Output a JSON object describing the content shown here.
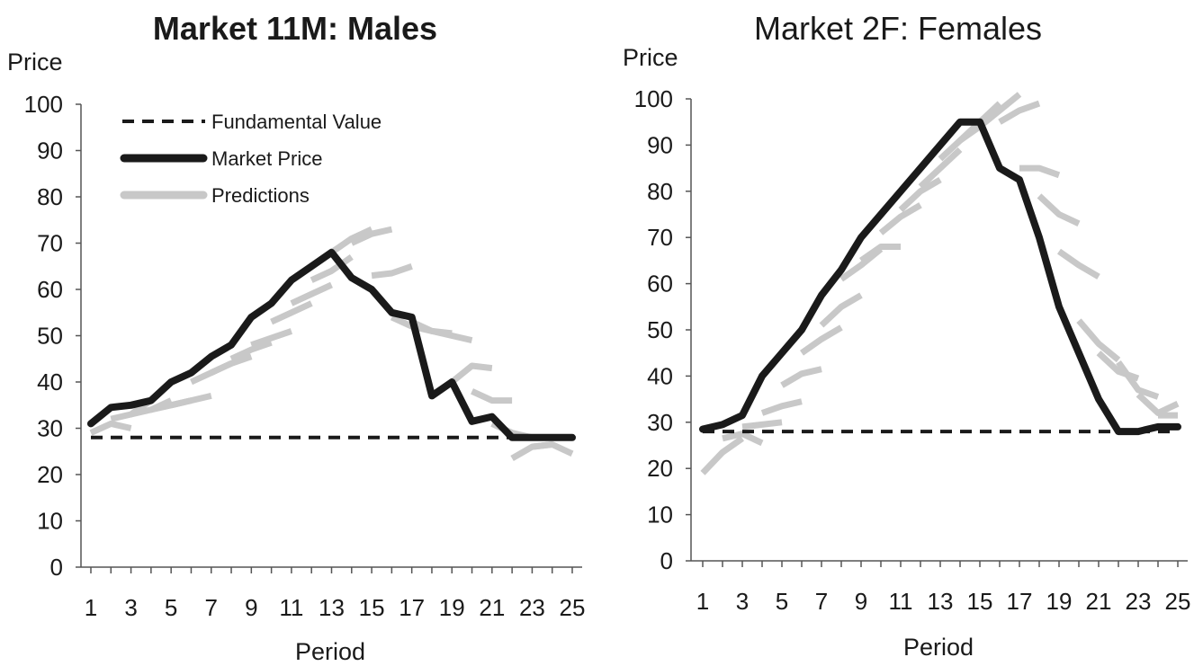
{
  "chart_data": [
    {
      "type": "line",
      "title": "Market 11M: Males",
      "xlabel": "Period",
      "ylabel": "Price",
      "ylim": [
        0,
        100
      ],
      "yticks": [
        0,
        10,
        20,
        30,
        40,
        50,
        60,
        70,
        80,
        90,
        100
      ],
      "xlim": [
        1,
        25
      ],
      "xticks": [
        1,
        3,
        5,
        7,
        9,
        11,
        13,
        15,
        17,
        19,
        21,
        23,
        25
      ],
      "legend_position": "top-left",
      "legend": [
        "Fundamental Value",
        "Market Price",
        "Predictions"
      ],
      "series": [
        {
          "name": "Fundamental Value",
          "style": "dashed",
          "color": "#1a1a1a",
          "x": [
            1,
            25
          ],
          "y": [
            28,
            28
          ]
        },
        {
          "name": "Market Price",
          "style": "solid",
          "color": "#1a1a1a",
          "x": [
            1,
            2,
            3,
            4,
            5,
            6,
            7,
            8,
            9,
            10,
            11,
            12,
            13,
            14,
            15,
            16,
            17,
            18,
            19,
            20,
            21,
            22,
            23,
            24,
            25
          ],
          "y": [
            31,
            34.5,
            35,
            36,
            40,
            42,
            45.5,
            48,
            54,
            57,
            62,
            65,
            68,
            62.5,
            60,
            55,
            54,
            37,
            40,
            31.5,
            32.5,
            28,
            28,
            28,
            28
          ]
        },
        {
          "name": "Predictions",
          "style": "dashed-gray",
          "color": "#c8c8c8",
          "segments": [
            {
              "x": [
                1,
                2,
                3
              ],
              "y": [
                29,
                31,
                30
              ]
            },
            {
              "x": [
                2,
                3,
                4
              ],
              "y": [
                32,
                33,
                36
              ]
            },
            {
              "x": [
                3,
                4,
                5
              ],
              "y": [
                33,
                34,
                36
              ]
            },
            {
              "x": [
                4,
                5,
                6
              ],
              "y": [
                34,
                35,
                36
              ]
            },
            {
              "x": [
                5,
                6,
                7
              ],
              "y": [
                35,
                36,
                37
              ]
            },
            {
              "x": [
                6,
                7,
                8
              ],
              "y": [
                40,
                42,
                44
              ]
            },
            {
              "x": [
                7,
                8,
                9
              ],
              "y": [
                42,
                44,
                45.5
              ]
            },
            {
              "x": [
                8,
                9,
                10
              ],
              "y": [
                45,
                47,
                48.5
              ]
            },
            {
              "x": [
                9,
                10,
                11
              ],
              "y": [
                48,
                49.5,
                51
              ]
            },
            {
              "x": [
                10,
                11,
                12
              ],
              "y": [
                53,
                55,
                57
              ]
            },
            {
              "x": [
                11,
                12,
                13
              ],
              "y": [
                57,
                59,
                61
              ]
            },
            {
              "x": [
                12,
                13,
                14
              ],
              "y": [
                62,
                64,
                67
              ]
            },
            {
              "x": [
                13,
                14,
                15
              ],
              "y": [
                68,
                71,
                73
              ]
            },
            {
              "x": [
                14,
                15,
                16
              ],
              "y": [
                70,
                72,
                73
              ]
            },
            {
              "x": [
                15,
                16,
                17
              ],
              "y": [
                63,
                63.5,
                65
              ]
            },
            {
              "x": [
                16,
                17,
                18
              ],
              "y": [
                54,
                52,
                51
              ]
            },
            {
              "x": [
                17,
                18,
                19
              ],
              "y": [
                53,
                51,
                50.5
              ]
            },
            {
              "x": [
                18,
                19,
                20
              ],
              "y": [
                51,
                50,
                49
              ]
            },
            {
              "x": [
                19,
                20,
                21
              ],
              "y": [
                40,
                43.5,
                43
              ]
            },
            {
              "x": [
                20,
                21,
                22
              ],
              "y": [
                38,
                36,
                36
              ]
            },
            {
              "x": [
                21,
                22,
                23
              ],
              "y": [
                31,
                29,
                28
              ]
            },
            {
              "x": [
                22,
                23,
                24
              ],
              "y": [
                23.5,
                26,
                26.5
              ]
            },
            {
              "x": [
                23,
                24,
                25
              ],
              "y": [
                26,
                26.5,
                24.5
              ]
            }
          ]
        }
      ]
    },
    {
      "type": "line",
      "title": "Market 2F: Females",
      "xlabel": "Period",
      "ylabel": "Price",
      "ylim": [
        0,
        100
      ],
      "yticks": [
        0,
        10,
        20,
        30,
        40,
        50,
        60,
        70,
        80,
        90,
        100
      ],
      "xlim": [
        1,
        25
      ],
      "xticks": [
        1,
        3,
        5,
        7,
        9,
        11,
        13,
        15,
        17,
        19,
        21,
        23,
        25
      ],
      "series": [
        {
          "name": "Fundamental Value",
          "style": "dashed",
          "color": "#1a1a1a",
          "x": [
            1,
            25
          ],
          "y": [
            28,
            28
          ]
        },
        {
          "name": "Market Price",
          "style": "solid",
          "color": "#1a1a1a",
          "x": [
            1,
            2,
            3,
            4,
            5,
            6,
            7,
            8,
            9,
            10,
            11,
            12,
            13,
            14,
            15,
            16,
            17,
            18,
            19,
            20,
            21,
            22,
            23,
            24,
            25
          ],
          "y": [
            28.5,
            29.5,
            31.5,
            40,
            45,
            50,
            57.5,
            63,
            70,
            75,
            80,
            85,
            90,
            95,
            95,
            85,
            82.5,
            70,
            55,
            45,
            35,
            28,
            28,
            29,
            29
          ]
        },
        {
          "name": "Predictions",
          "style": "dashed-gray",
          "color": "#c8c8c8",
          "segments": [
            {
              "x": [
                1,
                2,
                3
              ],
              "y": [
                19,
                23.5,
                26.5
              ]
            },
            {
              "x": [
                2,
                3,
                4
              ],
              "y": [
                26.5,
                27.5,
                25.5
              ]
            },
            {
              "x": [
                3,
                4,
                5
              ],
              "y": [
                29,
                29.5,
                30
              ]
            },
            {
              "x": [
                4,
                5,
                6
              ],
              "y": [
                32,
                33.5,
                34.5
              ]
            },
            {
              "x": [
                5,
                6,
                7
              ],
              "y": [
                38,
                40.5,
                41.5
              ]
            },
            {
              "x": [
                6,
                7,
                8
              ],
              "y": [
                45,
                48,
                50.5
              ]
            },
            {
              "x": [
                7,
                8,
                9
              ],
              "y": [
                51,
                55,
                57.5
              ]
            },
            {
              "x": [
                8,
                9,
                10
              ],
              "y": [
                61,
                64,
                67.5
              ]
            },
            {
              "x": [
                9,
                10,
                11
              ],
              "y": [
                65,
                68,
                68
              ]
            },
            {
              "x": [
                10,
                11,
                12
              ],
              "y": [
                71,
                74.5,
                77
              ]
            },
            {
              "x": [
                11,
                12,
                13
              ],
              "y": [
                76,
                80,
                82.5
              ]
            },
            {
              "x": [
                12,
                13,
                14
              ],
              "y": [
                81,
                85,
                89
              ]
            },
            {
              "x": [
                13,
                14,
                15
              ],
              "y": [
                87,
                91,
                94
              ]
            },
            {
              "x": [
                14,
                15,
                16
              ],
              "y": [
                91,
                95,
                99
              ]
            },
            {
              "x": [
                15,
                16,
                17
              ],
              "y": [
                94,
                97.5,
                101
              ]
            },
            {
              "x": [
                16,
                17,
                18
              ],
              "y": [
                95,
                97.5,
                99
              ]
            },
            {
              "x": [
                17,
                18,
                19
              ],
              "y": [
                85,
                85,
                83.5
              ]
            },
            {
              "x": [
                18,
                19,
                20
              ],
              "y": [
                79,
                75,
                73
              ]
            },
            {
              "x": [
                19,
                20,
                21
              ],
              "y": [
                67,
                64,
                61.5
              ]
            },
            {
              "x": [
                20,
                21,
                22
              ],
              "y": [
                52,
                47,
                43.5
              ]
            },
            {
              "x": [
                21,
                22,
                23
              ],
              "y": [
                45,
                41,
                39.5
              ]
            },
            {
              "x": [
                22,
                23,
                24
              ],
              "y": [
                43,
                37,
                35.5
              ]
            },
            {
              "x": [
                23,
                24,
                25
              ],
              "y": [
                36,
                32,
                34
              ]
            },
            {
              "x": [
                24,
                25
              ],
              "y": [
                31.5,
                31.5
              ]
            }
          ]
        }
      ]
    }
  ]
}
